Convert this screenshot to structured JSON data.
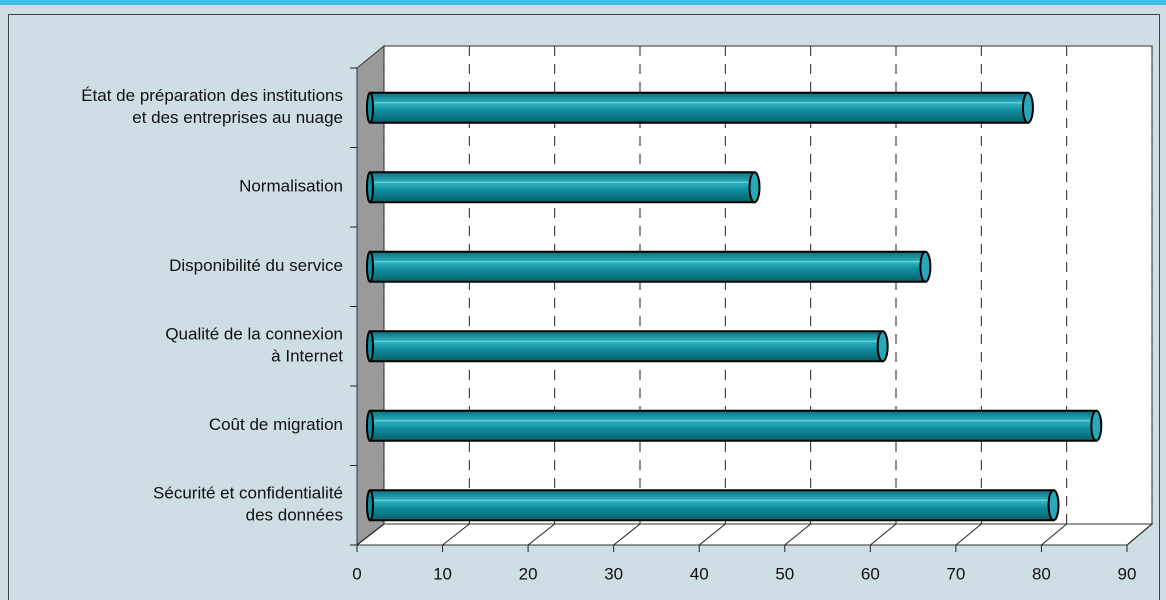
{
  "chart_data": {
    "type": "bar3d",
    "categories": [
      "État de préparation des institutions\net des entreprises au nuage",
      "Normalisation",
      "Disponibilité du service",
      "Qualité de la connexion\nà Internet",
      "Coût de migration",
      "Sécurité et confidentialité\ndes données"
    ],
    "values": [
      77,
      45,
      65,
      60,
      85,
      80
    ],
    "color": "#0f8c9c",
    "xlim": [
      0,
      90
    ],
    "xticks": [
      0,
      10,
      20,
      30,
      40,
      50,
      60,
      70,
      80,
      90
    ],
    "grid": true
  }
}
